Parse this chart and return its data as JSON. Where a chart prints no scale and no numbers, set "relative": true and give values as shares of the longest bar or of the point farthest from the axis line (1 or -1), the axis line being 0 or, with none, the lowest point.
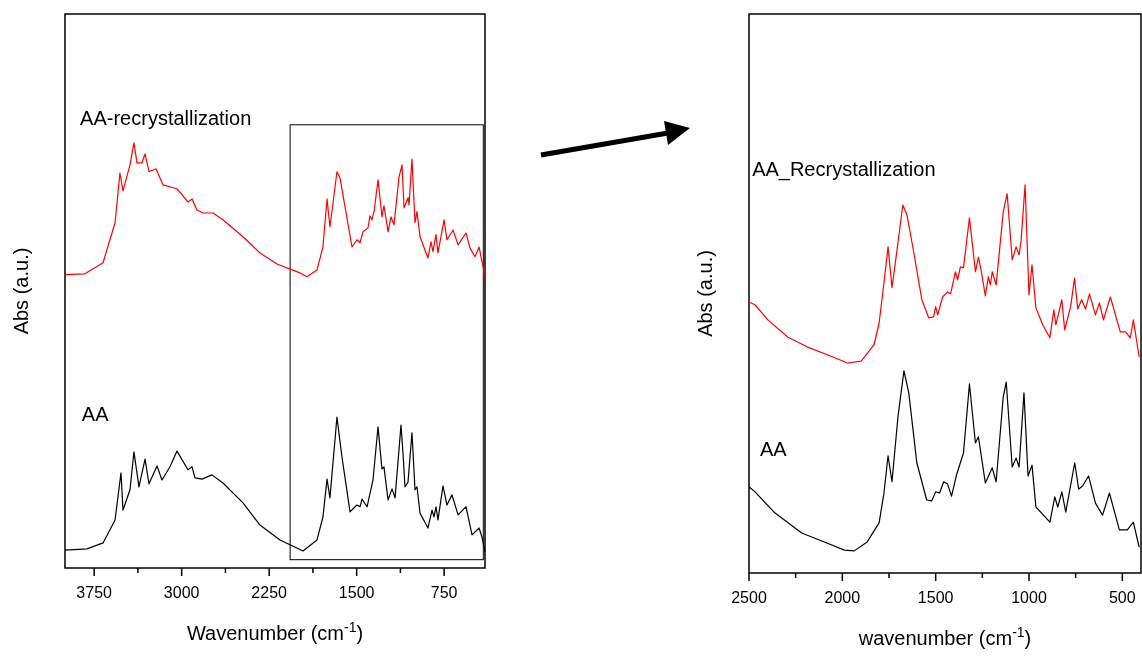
{
  "chart_data": [
    {
      "type": "line",
      "relative": true,
      "xlabel": "Wavenumber (cm$^{-1}$)",
      "ylabel": "Abs (a.u.)",
      "xlim": [
        4000,
        400
      ],
      "xticks": [
        3750,
        {
          "value": 3375,
          "label": null
        },
        3000,
        {
          "value": 2625,
          "label": null
        },
        2250,
        {
          "value": 1875,
          "label": null
        },
        1500,
        {
          "value": 1125,
          "label": null
        },
        750
      ],
      "tick_labels": "x",
      "grid": false,
      "series": [
        {
          "name": "AA-recrystallization",
          "color": "#ff0000",
          "x": [
            4000,
            3829,
            3674,
            3571,
            3529,
            3503,
            3443,
            3409,
            3383,
            3340,
            3314,
            3280,
            3220,
            3160,
            3040,
            2946,
            2911,
            2869,
            2817,
            2731,
            2646,
            2474,
            2329,
            2183,
            1986,
            1926,
            1840,
            1789,
            1754,
            1729,
            1669,
            1643,
            1540,
            1497,
            1471,
            1446,
            1403,
            1386,
            1369,
            1351,
            1317,
            1283,
            1266,
            1231,
            1206,
            1180,
            1137,
            1111,
            1094,
            1060,
            1051,
            1026,
            1000,
            983,
            957,
            889,
            863,
            846,
            820,
            803,
            751,
            726,
            674,
            631,
            563,
            529,
            486,
            451,
            434,
            400
          ],
          "values": [
            0.69,
            0.692,
            0.718,
            0.812,
            0.929,
            0.887,
            0.948,
            1.0,
            0.953,
            0.953,
            0.974,
            0.932,
            0.939,
            0.901,
            0.892,
            0.861,
            0.868,
            0.842,
            0.835,
            0.835,
            0.819,
            0.779,
            0.741,
            0.715,
            0.694,
            0.685,
            0.701,
            0.755,
            0.868,
            0.802,
            0.932,
            0.918,
            0.755,
            0.772,
            0.765,
            0.791,
            0.8,
            0.828,
            0.819,
            0.838,
            0.913,
            0.826,
            0.852,
            0.791,
            0.826,
            0.807,
            0.92,
            0.948,
            0.847,
            0.871,
            0.854,
            0.962,
            0.812,
            0.838,
            0.779,
            0.729,
            0.767,
            0.744,
            0.784,
            0.741,
            0.819,
            0.772,
            0.795,
            0.76,
            0.788,
            0.753,
            0.732,
            0.755,
            0.732,
            0.685
          ]
        },
        {
          "name": "AA",
          "color": "#000000",
          "x": [
            4000,
            3811,
            3674,
            3571,
            3520,
            3503,
            3443,
            3409,
            3366,
            3314,
            3280,
            3211,
            3169,
            3100,
            3040,
            2946,
            2911,
            2886,
            2826,
            2740,
            2646,
            2474,
            2329,
            2157,
            1960,
            1840,
            1789,
            1754,
            1729,
            1669,
            1626,
            1557,
            1514,
            1497,
            1471,
            1454,
            1411,
            1360,
            1317,
            1283,
            1266,
            1231,
            1197,
            1171,
            1120,
            1103,
            1086,
            1060,
            1026,
            1000,
            983,
            957,
            889,
            854,
            837,
            820,
            803,
            760,
            726,
            683,
            631,
            563,
            511,
            451,
            426,
            400
          ],
          "values": [
            0.042,
            0.045,
            0.059,
            0.113,
            0.224,
            0.136,
            0.184,
            0.273,
            0.191,
            0.256,
            0.198,
            0.24,
            0.207,
            0.238,
            0.275,
            0.231,
            0.238,
            0.212,
            0.209,
            0.219,
            0.2,
            0.153,
            0.101,
            0.066,
            0.04,
            0.066,
            0.12,
            0.209,
            0.165,
            0.355,
            0.261,
            0.132,
            0.144,
            0.148,
            0.144,
            0.162,
            0.144,
            0.207,
            0.332,
            0.233,
            0.238,
            0.16,
            0.186,
            0.165,
            0.336,
            0.271,
            0.191,
            0.202,
            0.318,
            0.184,
            0.191,
            0.129,
            0.094,
            0.136,
            0.12,
            0.144,
            0.113,
            0.193,
            0.148,
            0.172,
            0.125,
            0.144,
            0.078,
            0.094,
            0.073,
            0.038
          ]
        }
      ]
    },
    {
      "type": "line",
      "relative": true,
      "xlabel": "wavenumber (cm$^{-1}$)",
      "ylabel": "Abs (a.u.)",
      "xlim": [
        2500,
        400
      ],
      "xticks": [
        2500,
        {
          "value": 2250,
          "label": null
        },
        2000,
        {
          "value": 1750,
          "label": null
        },
        1500,
        {
          "value": 1250,
          "label": null
        },
        1000,
        {
          "value": 750,
          "label": null
        },
        500
      ],
      "tick_labels": "x",
      "grid": false,
      "series": [
        {
          "name": "AA_Recrystallization",
          "color": "#ff0000",
          "x": [
            2500,
            2468,
            2399,
            2293,
            2186,
            2053,
            1973,
            1899,
            1830,
            1803,
            1777,
            1755,
            1734,
            1707,
            1676,
            1654,
            1617,
            1574,
            1537,
            1511,
            1500,
            1489,
            1463,
            1436,
            1420,
            1394,
            1383,
            1367,
            1351,
            1319,
            1287,
            1271,
            1255,
            1234,
            1218,
            1207,
            1197,
            1176,
            1138,
            1117,
            1090,
            1069,
            1053,
            1043,
            1021,
            1000,
            984,
            963,
            926,
            888,
            867,
            856,
            824,
            809,
            777,
            756,
            739,
            718,
            697,
            676,
            644,
            623,
            601,
            564,
            511,
            484,
            457,
            441,
            410
          ],
          "values": [
            0.698,
            0.691,
            0.652,
            0.608,
            0.582,
            0.557,
            0.541,
            0.546,
            0.588,
            0.644,
            0.747,
            0.84,
            0.735,
            0.832,
            0.948,
            0.923,
            0.825,
            0.704,
            0.657,
            0.66,
            0.686,
            0.665,
            0.711,
            0.724,
            0.719,
            0.776,
            0.755,
            0.789,
            0.786,
            0.915,
            0.776,
            0.814,
            0.776,
            0.714,
            0.763,
            0.742,
            0.776,
            0.742,
            0.93,
            0.977,
            0.807,
            0.84,
            0.82,
            0.853,
            1.0,
            0.716,
            0.794,
            0.683,
            0.639,
            0.606,
            0.678,
            0.639,
            0.704,
            0.626,
            0.686,
            0.76,
            0.68,
            0.704,
            0.68,
            0.719,
            0.665,
            0.696,
            0.652,
            0.711,
            0.621,
            0.621,
            0.606,
            0.652,
            0.557
          ]
        },
        {
          "name": "AA",
          "color": "#000000",
          "x": [
            2500,
            2468,
            2362,
            2218,
            2096,
            1989,
            1936,
            1867,
            1803,
            1777,
            1755,
            1734,
            1702,
            1670,
            1644,
            1601,
            1548,
            1521,
            1500,
            1479,
            1457,
            1436,
            1415,
            1388,
            1351,
            1319,
            1287,
            1271,
            1234,
            1197,
            1176,
            1138,
            1122,
            1090,
            1069,
            1053,
            1027,
            1005,
            984,
            963,
            888,
            862,
            846,
            824,
            803,
            755,
            734,
            713,
            681,
            644,
            606,
            569,
            516,
            473,
            441,
            410
          ],
          "values": [
            0.222,
            0.209,
            0.155,
            0.103,
            0.08,
            0.059,
            0.057,
            0.08,
            0.129,
            0.206,
            0.302,
            0.235,
            0.402,
            0.521,
            0.464,
            0.284,
            0.188,
            0.186,
            0.209,
            0.206,
            0.235,
            0.229,
            0.198,
            0.253,
            0.309,
            0.487,
            0.335,
            0.351,
            0.232,
            0.271,
            0.235,
            0.454,
            0.492,
            0.273,
            0.296,
            0.273,
            0.464,
            0.25,
            0.278,
            0.17,
            0.131,
            0.196,
            0.17,
            0.209,
            0.157,
            0.284,
            0.216,
            0.224,
            0.25,
            0.18,
            0.149,
            0.206,
            0.111,
            0.111,
            0.131,
            0.067
          ]
        }
      ]
    }
  ]
}
